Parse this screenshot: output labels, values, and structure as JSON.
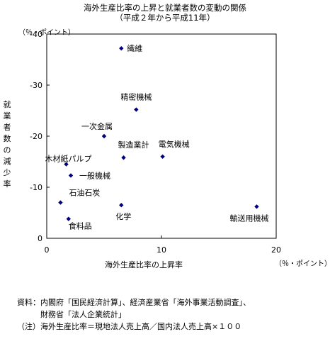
{
  "chart_data": {
    "type": "scatter",
    "title": "海外生産比率の上昇と就業者数の変動の関係",
    "subtitle": "（平成２年から平成11年）",
    "xlabel": "海外生産比率の上昇率",
    "ylabel": "就業者数の減少率",
    "x_unit": "（％・ポイント）",
    "y_unit": "（％・ポイント）",
    "xlim": [
      0,
      20
    ],
    "ylim": [
      0,
      -40
    ],
    "x_ticks": [
      "0",
      "10",
      "20"
    ],
    "y_ticks": [
      "0",
      "-10",
      "-20",
      "-30",
      "-40"
    ],
    "grid": false,
    "marker_color": "#000080",
    "points": [
      {
        "label": "繊維",
        "x": 6.5,
        "y": -37.2
      },
      {
        "label": "精密機械",
        "x": 7.8,
        "y": -25.2
      },
      {
        "label": "一次金属",
        "x": 5.0,
        "y": -20.0
      },
      {
        "label": "製造業計",
        "x": 6.7,
        "y": -15.8
      },
      {
        "label": "電気機械",
        "x": 10.1,
        "y": -16.0
      },
      {
        "label": "木材紙パルプ",
        "x": 1.7,
        "y": -14.5
      },
      {
        "label": "一般機械",
        "x": 2.1,
        "y": -12.3
      },
      {
        "label": "石油石炭",
        "x": 1.2,
        "y": -7.0
      },
      {
        "label": "食料品",
        "x": 1.9,
        "y": -3.8
      },
      {
        "label": "化学",
        "x": 6.5,
        "y": -6.5
      },
      {
        "label": "輸送用機械",
        "x": 18.3,
        "y": -6.2
      }
    ]
  },
  "notes": {
    "line1": "資料：内閣府「国民経済計算」、経済産業省「海外事業活動調査」、",
    "line2": "　　　財務省「法人企業統計」",
    "line3": "（注）海外生産比率＝現地法人売上高／国内法人売上高×１００"
  }
}
